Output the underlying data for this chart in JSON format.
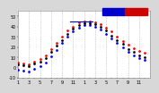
{
  "background_color": "#d8d8d8",
  "plot_bg_color": "#ffffff",
  "grid_color": "#aaaaaa",
  "xlim": [
    0,
    24
  ],
  "ylim": [
    -10,
    55
  ],
  "hours": [
    0,
    1,
    2,
    3,
    4,
    5,
    6,
    7,
    8,
    9,
    10,
    11,
    12,
    13,
    14,
    15,
    16,
    17,
    18,
    19,
    20,
    21,
    22,
    23
  ],
  "temp": [
    5,
    4,
    3,
    6,
    8,
    12,
    18,
    24,
    30,
    36,
    40,
    44,
    45,
    45,
    44,
    42,
    39,
    35,
    30,
    26,
    22,
    19,
    16,
    14
  ],
  "windchill": [
    -2,
    -3,
    -4,
    -1,
    1,
    5,
    11,
    17,
    24,
    30,
    35,
    39,
    41,
    41,
    40,
    37,
    33,
    28,
    24,
    20,
    15,
    12,
    9,
    7
  ],
  "extra": [
    3,
    2,
    1,
    4,
    6,
    9,
    15,
    21,
    27,
    33,
    38,
    41,
    43,
    43,
    42,
    40,
    36,
    31,
    27,
    23,
    18,
    15,
    12,
    10
  ],
  "temp_color": "#ff0000",
  "windchill_color": "#0000ff",
  "extra_color": "#000000",
  "dot_size": 4,
  "tick_fontsize": 3.5,
  "legend_blue_color": "#0000cc",
  "legend_red_color": "#cc0000",
  "xtick_positions": [
    0,
    1,
    2,
    3,
    4,
    5,
    6,
    7,
    8,
    9,
    10,
    11,
    12,
    13,
    14,
    15,
    16,
    17,
    18,
    19,
    20,
    21,
    22,
    23
  ],
  "xtick_labels": [
    "1",
    "",
    "3",
    "",
    "5",
    "",
    "7",
    "",
    "9",
    "",
    "11",
    "",
    "1",
    "",
    "3",
    "",
    "5",
    "",
    "7",
    "",
    "9",
    "",
    "11",
    ""
  ],
  "ytick_positions": [
    -10,
    0,
    10,
    20,
    30,
    40,
    50
  ],
  "ytick_labels": [
    "-10",
    "0",
    "10",
    "20",
    "30",
    "40",
    "50"
  ]
}
